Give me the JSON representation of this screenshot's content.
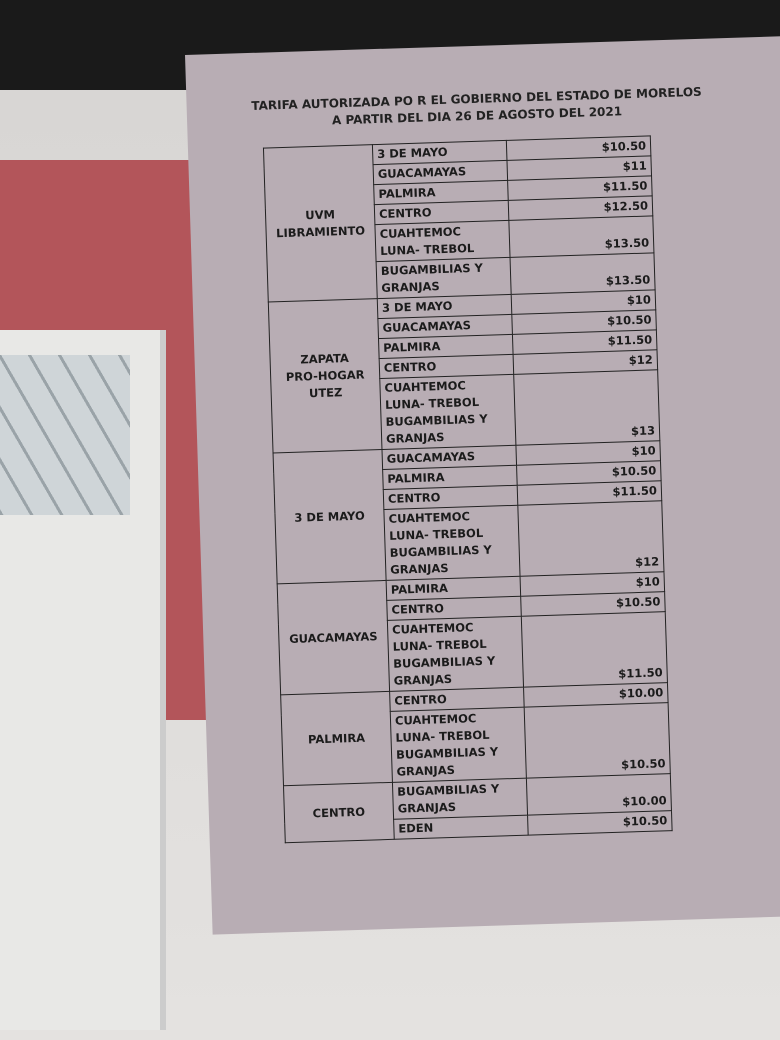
{
  "header": {
    "title_lines": [
      "TARIFA AUTORIZADA PO R EL GOBIERNO DEL ESTADO DE MORELOS",
      "A PARTIR DEL DIA 26 DE AGOSTO DEL 2021"
    ]
  },
  "table": {
    "groups": [
      {
        "origin": [
          "UVM",
          "LIBRAMIENTO"
        ],
        "rows": [
          {
            "destination": [
              "3 DE MAYO"
            ],
            "price": "$10.50"
          },
          {
            "destination": [
              "GUACAMAYAS"
            ],
            "price": "$11"
          },
          {
            "destination": [
              "PALMIRA"
            ],
            "price": "$11.50"
          },
          {
            "destination": [
              "CENTRO"
            ],
            "price": "$12.50"
          },
          {
            "destination": [
              "CUAHTEMOC",
              "LUNA- TREBOL"
            ],
            "price": "$13.50"
          },
          {
            "destination": [
              "BUGAMBILIAS Y",
              "GRANJAS"
            ],
            "price": "$13.50"
          }
        ]
      },
      {
        "origin": [
          "ZAPATA",
          "PRO-HOGAR",
          "UTEZ"
        ],
        "rows": [
          {
            "destination": [
              "3 DE MAYO"
            ],
            "price": "$10"
          },
          {
            "destination": [
              "GUACAMAYAS"
            ],
            "price": "$10.50"
          },
          {
            "destination": [
              "PALMIRA"
            ],
            "price": "$11.50"
          },
          {
            "destination": [
              "CENTRO"
            ],
            "price": "$12"
          },
          {
            "destination": [
              "CUAHTEMOC",
              "LUNA- TREBOL",
              "BUGAMBILIAS Y",
              "GRANJAS"
            ],
            "price": "$13"
          }
        ]
      },
      {
        "origin": [
          "3 DE MAYO"
        ],
        "rows": [
          {
            "destination": [
              "GUACAMAYAS"
            ],
            "price": "$10"
          },
          {
            "destination": [
              "PALMIRA"
            ],
            "price": "$10.50"
          },
          {
            "destination": [
              "CENTRO"
            ],
            "price": "$11.50"
          },
          {
            "destination": [
              "CUAHTEMOC",
              "LUNA- TREBOL",
              "BUGAMBILIAS Y",
              "GRANJAS"
            ],
            "price": "$12"
          }
        ]
      },
      {
        "origin": [
          "GUACAMAYAS"
        ],
        "rows": [
          {
            "destination": [
              "PALMIRA"
            ],
            "price": "$10"
          },
          {
            "destination": [
              "CENTRO"
            ],
            "price": "$10.50"
          },
          {
            "destination": [
              "CUAHTEMOC",
              "LUNA- TREBOL",
              "BUGAMBILIAS Y",
              "GRANJAS"
            ],
            "price": "$11.50"
          }
        ]
      },
      {
        "origin": [
          "PALMIRA"
        ],
        "rows": [
          {
            "destination": [
              "CENTRO"
            ],
            "price": "$10.00"
          },
          {
            "destination": [
              "CUAHTEMOC",
              "LUNA- TREBOL",
              "BUGAMBILIAS Y",
              "GRANJAS"
            ],
            "price": "$10.50"
          }
        ]
      },
      {
        "origin": [
          "CENTRO"
        ],
        "rows": [
          {
            "destination": [
              "BUGAMBILIAS Y",
              "GRANJAS"
            ],
            "price": "$10.00"
          },
          {
            "destination": [
              "EDEN"
            ],
            "price": "$10.50"
          }
        ]
      }
    ]
  }
}
